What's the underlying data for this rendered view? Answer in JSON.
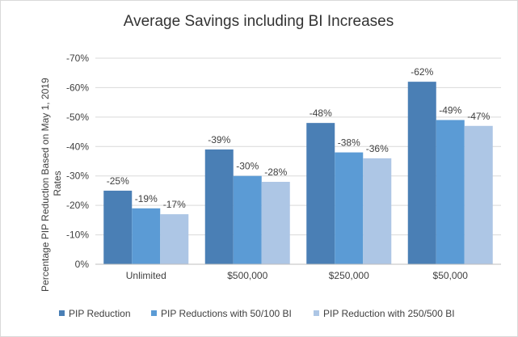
{
  "chart_data": {
    "type": "bar",
    "title": "Average Savings including BI Increases",
    "ylabel": "Percentage PIP Reduction Based on May 1, 2019 Rates",
    "ylabel_lines": [
      "Percentage PIP Reduction Based on May 1, 2019",
      "Rates"
    ],
    "xlabel": "",
    "categories": [
      "Unlimited",
      "$500,000",
      "$250,000",
      "$50,000"
    ],
    "ylim": [
      0,
      -70
    ],
    "yticks": [
      0,
      -10,
      -20,
      -30,
      -40,
      -50,
      -60,
      -70
    ],
    "ytick_labels": [
      "0%",
      "-10%",
      "-20%",
      "-30%",
      "-40%",
      "-50%",
      "-60%",
      "-70%"
    ],
    "series": [
      {
        "name": "PIP Reduction",
        "values": [
          -25,
          -39,
          -48,
          -62
        ],
        "labels": [
          "-25%",
          "-39%",
          "-48%",
          "-62%"
        ],
        "color": "#4a7fb5"
      },
      {
        "name": "PIP Reductions with 50/100 BI",
        "values": [
          -19,
          -30,
          -38,
          -49
        ],
        "labels": [
          "-19%",
          "-30%",
          "-38%",
          "-49%"
        ],
        "color": "#5b9bd5"
      },
      {
        "name": "PIP Reduction with 250/500 BI",
        "values": [
          -17,
          -28,
          -36,
          -47
        ],
        "labels": [
          "-17%",
          "-28%",
          "-36%",
          "-47%"
        ],
        "color": "#adc6e5"
      }
    ],
    "grid": true,
    "legend": "bottom"
  }
}
